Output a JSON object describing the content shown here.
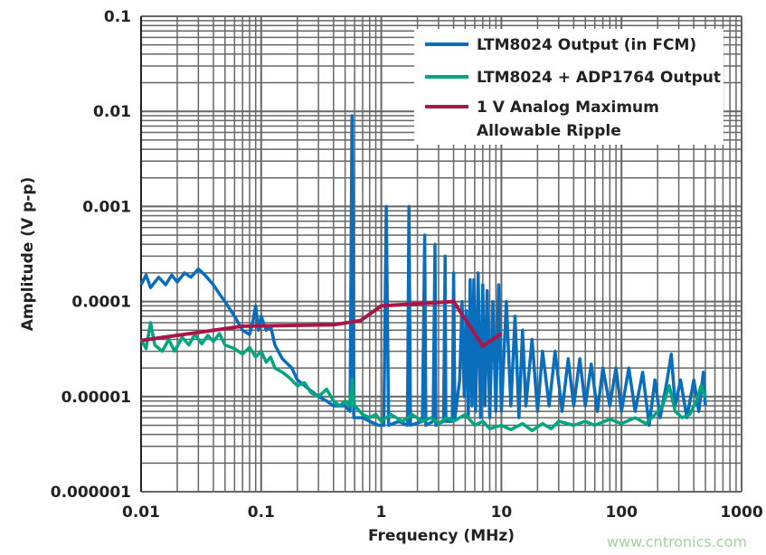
{
  "chart_data": {
    "type": "line",
    "xlabel": "Frequency (MHz)",
    "ylabel": "Amplitude (V p-p)",
    "xscale": "log",
    "yscale": "log",
    "xlim": [
      0.01,
      1000
    ],
    "ylim": [
      1e-06,
      0.1
    ],
    "grid": true,
    "legend_position": "top-right",
    "x_ticks": [
      "0.01",
      "0.1",
      "1",
      "10",
      "100",
      "1000"
    ],
    "y_ticks": [
      "0.1",
      "0.01",
      "0.001",
      "0.0001",
      "0.00001",
      "0.000001"
    ],
    "grid_color": "#666666",
    "series": [
      {
        "name": "LTM8024 Output (in FCM)",
        "color": "#0a6ebd",
        "points": [
          [
            0.01,
            0.00015
          ],
          [
            0.011,
            0.00019
          ],
          [
            0.012,
            0.00014
          ],
          [
            0.014,
            0.00018
          ],
          [
            0.016,
            0.00015
          ],
          [
            0.018,
            0.00019
          ],
          [
            0.02,
            0.00016
          ],
          [
            0.023,
            0.0002
          ],
          [
            0.026,
            0.00018
          ],
          [
            0.03,
            0.00022
          ],
          [
            0.034,
            0.00019
          ],
          [
            0.04,
            0.00015
          ],
          [
            0.045,
            0.00012
          ],
          [
            0.05,
            0.0001
          ],
          [
            0.06,
            7e-05
          ],
          [
            0.07,
            5e-05
          ],
          [
            0.08,
            4.5e-05
          ],
          [
            0.085,
            6e-05
          ],
          [
            0.09,
            9e-05
          ],
          [
            0.095,
            5e-05
          ],
          [
            0.1,
            7e-05
          ],
          [
            0.11,
            5e-05
          ],
          [
            0.12,
            5.5e-05
          ],
          [
            0.13,
            3.5e-05
          ],
          [
            0.15,
            2.5e-05
          ],
          [
            0.18,
            2e-05
          ],
          [
            0.2,
            1.5e-05
          ],
          [
            0.25,
            1.2e-05
          ],
          [
            0.3,
            1e-05
          ],
          [
            0.35,
            9e-06
          ],
          [
            0.4,
            8e-06
          ],
          [
            0.5,
            8e-06
          ],
          [
            0.55,
            7e-06
          ],
          [
            0.57,
            0.009
          ],
          [
            0.59,
            6e-06
          ],
          [
            0.7,
            6e-06
          ],
          [
            0.8,
            5.5e-06
          ],
          [
            0.95,
            5e-06
          ],
          [
            1.05,
            5e-06
          ],
          [
            1.1,
            0.001
          ],
          [
            1.15,
            5e-06
          ],
          [
            1.4,
            5.5e-06
          ],
          [
            1.65,
            5e-06
          ],
          [
            1.7,
            0.001
          ],
          [
            1.75,
            5e-06
          ],
          [
            2.2,
            5.5e-06
          ],
          [
            2.3,
            0.0005
          ],
          [
            2.35,
            5e-06
          ],
          [
            2.7,
            5.5e-06
          ],
          [
            2.8,
            0.0004
          ],
          [
            2.85,
            5e-06
          ],
          [
            3.3,
            5.5e-06
          ],
          [
            3.4,
            0.0003
          ],
          [
            3.45,
            5.5e-06
          ],
          [
            3.9,
            5.5e-06
          ],
          [
            4.0,
            0.0002
          ],
          [
            4.1,
            6e-06
          ],
          [
            4.5,
            1.5e-05
          ],
          [
            4.7,
            0.0001
          ],
          [
            4.9,
            1e-05
          ],
          [
            5.1,
            8e-05
          ],
          [
            5.3,
            6e-06
          ],
          [
            5.5,
            0.00017
          ],
          [
            5.7,
            8e-06
          ],
          [
            5.9,
            0.00017
          ],
          [
            6.1,
            7e-06
          ],
          [
            6.4,
            0.0002
          ],
          [
            6.7,
            6e-06
          ],
          [
            7.0,
            0.00015
          ],
          [
            7.3,
            8e-06
          ],
          [
            7.6,
            0.00013
          ],
          [
            8.0,
            6e-06
          ],
          [
            8.5,
            0.0001
          ],
          [
            9,
            7e-06
          ],
          [
            9.5,
            0.00015
          ],
          [
            10,
            7e-06
          ],
          [
            11,
            0.0001
          ],
          [
            12,
            8e-06
          ],
          [
            13,
            7e-05
          ],
          [
            14,
            6e-06
          ],
          [
            15,
            5e-05
          ],
          [
            16,
            8e-06
          ],
          [
            18,
            4e-05
          ],
          [
            20,
            7e-06
          ],
          [
            22,
            3e-05
          ],
          [
            25,
            8e-06
          ],
          [
            28,
            3e-05
          ],
          [
            32,
            7e-06
          ],
          [
            36,
            2.5e-05
          ],
          [
            40,
            8e-06
          ],
          [
            45,
            2.5e-05
          ],
          [
            50,
            8e-06
          ],
          [
            56,
            2.2e-05
          ],
          [
            63,
            7e-06
          ],
          [
            70,
            2e-05
          ],
          [
            80,
            8e-06
          ],
          [
            90,
            2e-05
          ],
          [
            100,
            7e-06
          ],
          [
            115,
            2e-05
          ],
          [
            130,
            7e-06
          ],
          [
            150,
            1.8e-05
          ],
          [
            170,
            5e-06
          ],
          [
            190,
            1.5e-05
          ],
          [
            210,
            6e-06
          ],
          [
            240,
            1.5e-05
          ],
          [
            260,
            2.8e-05
          ],
          [
            280,
            8e-06
          ],
          [
            310,
            1.5e-05
          ],
          [
            350,
            6e-06
          ],
          [
            400,
            1.5e-05
          ],
          [
            440,
            7e-06
          ],
          [
            480,
            1.8e-05
          ],
          [
            500,
            8e-06
          ]
        ]
      },
      {
        "name": "LTM8024 + ADP1764 Output",
        "color": "#00a67e",
        "points": [
          [
            0.01,
            4e-05
          ],
          [
            0.011,
            3.2e-05
          ],
          [
            0.012,
            6e-05
          ],
          [
            0.013,
            3.5e-05
          ],
          [
            0.015,
            3e-05
          ],
          [
            0.017,
            4e-05
          ],
          [
            0.019,
            3e-05
          ],
          [
            0.022,
            4.2e-05
          ],
          [
            0.025,
            3.5e-05
          ],
          [
            0.028,
            4.5e-05
          ],
          [
            0.032,
            3.6e-05
          ],
          [
            0.036,
            4.4e-05
          ],
          [
            0.04,
            3.8e-05
          ],
          [
            0.045,
            4.6e-05
          ],
          [
            0.05,
            3.5e-05
          ],
          [
            0.06,
            3.2e-05
          ],
          [
            0.07,
            2.8e-05
          ],
          [
            0.08,
            3.3e-05
          ],
          [
            0.09,
            2.6e-05
          ],
          [
            0.1,
            3e-05
          ],
          [
            0.11,
            2.3e-05
          ],
          [
            0.12,
            2.6e-05
          ],
          [
            0.13,
            2e-05
          ],
          [
            0.15,
            1.8e-05
          ],
          [
            0.17,
            1.6e-05
          ],
          [
            0.2,
            1.3e-05
          ],
          [
            0.23,
            1.4e-05
          ],
          [
            0.26,
            1.1e-05
          ],
          [
            0.3,
            1e-05
          ],
          [
            0.35,
            1.2e-05
          ],
          [
            0.4,
            9e-06
          ],
          [
            0.45,
            8e-06
          ],
          [
            0.5,
            9e-06
          ],
          [
            0.55,
            8e-06
          ],
          [
            0.57,
            1.5e-05
          ],
          [
            0.6,
            8e-06
          ],
          [
            0.7,
            6.5e-06
          ],
          [
            0.8,
            6e-06
          ],
          [
            0.9,
            6.5e-06
          ],
          [
            1.0,
            5.5e-06
          ],
          [
            1.2,
            6.5e-06
          ],
          [
            1.5,
            5.5e-06
          ],
          [
            1.8,
            6.5e-06
          ],
          [
            2.2,
            5.5e-06
          ],
          [
            2.6,
            6e-06
          ],
          [
            3,
            5.2e-06
          ],
          [
            3.5,
            6e-06
          ],
          [
            4,
            5.5e-06
          ],
          [
            5,
            6.5e-06
          ],
          [
            6,
            5e-06
          ],
          [
            7,
            5.5e-06
          ],
          [
            8,
            4.6e-06
          ],
          [
            10,
            5e-06
          ],
          [
            12,
            4.5e-06
          ],
          [
            15,
            5.2e-06
          ],
          [
            18,
            4.4e-06
          ],
          [
            22,
            5.2e-06
          ],
          [
            26,
            4.6e-06
          ],
          [
            30,
            5.5e-06
          ],
          [
            40,
            5e-06
          ],
          [
            50,
            5.5e-06
          ],
          [
            60,
            5e-06
          ],
          [
            80,
            5.8e-06
          ],
          [
            100,
            5.2e-06
          ],
          [
            130,
            6e-06
          ],
          [
            160,
            5.2e-06
          ],
          [
            190,
            6.5e-06
          ],
          [
            220,
            8e-06
          ],
          [
            250,
            1.3e-05
          ],
          [
            280,
            7e-06
          ],
          [
            320,
            6e-06
          ],
          [
            370,
            6.5e-06
          ],
          [
            420,
            9e-06
          ],
          [
            460,
            1.3e-05
          ],
          [
            500,
            1e-05
          ]
        ]
      },
      {
        "name": "1 V Analog Maximum Allowable Ripple",
        "color": "#a8174a",
        "points": [
          [
            0.01,
            3.9e-05
          ],
          [
            0.07,
            5.5e-05
          ],
          [
            0.4,
            5.7e-05
          ],
          [
            0.67,
            6.3e-05
          ],
          [
            1.0,
            9e-05
          ],
          [
            4.0,
            0.0001
          ],
          [
            7.0,
            3.4e-05
          ],
          [
            10,
            4.6e-05
          ]
        ]
      }
    ],
    "legend": [
      "LTM8024 Output (in FCM)",
      "LTM8024 + ADP1764 Output",
      "1 V Analog Maximum",
      "Allowable Ripple"
    ]
  },
  "watermark": "www.cntronics.com"
}
